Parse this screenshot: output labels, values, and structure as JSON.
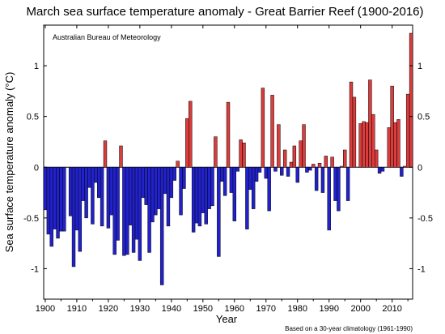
{
  "chart_data": {
    "type": "bar",
    "title": "March sea surface temperature anomaly - Great Barrier Reef (1900-2016)",
    "source": "Australian Bureau of Meteorology",
    "xlabel": "Year",
    "ylabel": "Sea surface temperature anomaly (°C)",
    "note": "Based on a 30-year climatology (1961-1990)",
    "xlim": [
      1899.5,
      2016.5
    ],
    "ylim": [
      -1.3,
      1.4
    ],
    "xticks": [
      1900,
      1910,
      1920,
      1930,
      1940,
      1950,
      1960,
      1970,
      1980,
      1990,
      2000,
      2010
    ],
    "yticks": [
      -1,
      -0.5,
      0,
      0.5,
      1
    ],
    "ytick_labels": [
      "-1",
      "-0.5",
      "0",
      "0.5",
      "1"
    ],
    "grid": false,
    "colors": {
      "positive": "#dc3c3c",
      "negative": "#2222cc",
      "outline": "#000000"
    },
    "x": [
      1900,
      1901,
      1902,
      1903,
      1904,
      1905,
      1906,
      1907,
      1908,
      1909,
      1910,
      1911,
      1912,
      1913,
      1914,
      1915,
      1916,
      1917,
      1918,
      1919,
      1920,
      1921,
      1922,
      1923,
      1924,
      1925,
      1926,
      1927,
      1928,
      1929,
      1930,
      1931,
      1932,
      1933,
      1934,
      1935,
      1936,
      1937,
      1938,
      1939,
      1940,
      1941,
      1942,
      1943,
      1944,
      1945,
      1946,
      1947,
      1948,
      1949,
      1950,
      1951,
      1952,
      1953,
      1954,
      1955,
      1956,
      1957,
      1958,
      1959,
      1960,
      1961,
      1962,
      1963,
      1964,
      1965,
      1966,
      1967,
      1968,
      1969,
      1970,
      1971,
      1972,
      1973,
      1974,
      1975,
      1976,
      1977,
      1978,
      1979,
      1980,
      1981,
      1982,
      1983,
      1984,
      1985,
      1986,
      1987,
      1988,
      1989,
      1990,
      1991,
      1992,
      1993,
      1994,
      1995,
      1996,
      1997,
      1998,
      1999,
      2000,
      2001,
      2002,
      2003,
      2004,
      2005,
      2006,
      2007,
      2008,
      2009,
      2010,
      2011,
      2012,
      2013,
      2014,
      2015,
      2016
    ],
    "values": [
      -0.42,
      -0.66,
      -0.78,
      -0.61,
      -0.7,
      -0.63,
      -0.63,
      -0.0,
      -0.48,
      -0.98,
      -0.62,
      -0.83,
      -0.33,
      -0.5,
      -0.2,
      -0.56,
      -0.15,
      -0.3,
      -0.58,
      0.26,
      -0.6,
      -0.47,
      -0.86,
      -0.72,
      0.21,
      -0.87,
      -0.86,
      -0.57,
      -0.84,
      -0.71,
      -0.92,
      -0.3,
      -0.37,
      -0.84,
      -0.54,
      -0.47,
      -0.41,
      -1.16,
      -0.26,
      -0.58,
      -0.3,
      -0.13,
      0.06,
      -0.47,
      -0.21,
      0.48,
      0.65,
      -0.64,
      -0.55,
      -0.58,
      -0.45,
      -0.56,
      -0.41,
      -0.38,
      0.3,
      -0.88,
      -0.14,
      -0.28,
      0.64,
      -0.25,
      -0.53,
      -0.04,
      0.27,
      0.24,
      -0.61,
      -0.22,
      -0.41,
      -0.14,
      -0.05,
      0.78,
      -0.11,
      -0.43,
      0.71,
      -0.04,
      0.42,
      -0.08,
      0.17,
      -0.09,
      0.05,
      0.21,
      -0.15,
      0.26,
      0.42,
      -0.05,
      -0.03,
      0.03,
      -0.23,
      0.04,
      -0.25,
      0.11,
      -0.62,
      0.1,
      -0.33,
      -0.43,
      0.01,
      0.17,
      -0.33,
      0.84,
      0.69,
      0.0,
      0.43,
      0.45,
      0.44,
      0.86,
      0.52,
      0.17,
      -0.06,
      -0.04,
      0.0,
      0.39,
      0.8,
      0.44,
      0.47,
      -0.09,
      0.01,
      0.72,
      1.32
    ]
  }
}
